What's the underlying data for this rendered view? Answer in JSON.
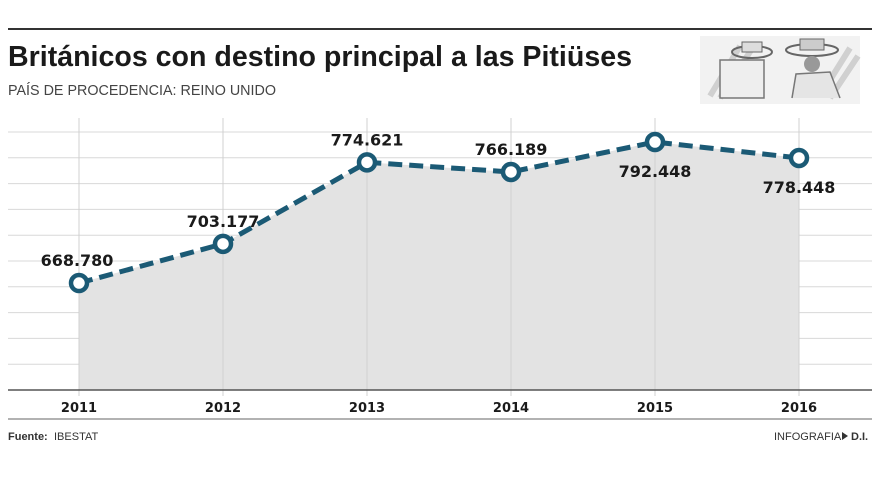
{
  "header": {
    "title": "Británicos con destino principal a las Pitiüses",
    "subtitle": "PAÍS DE PROCEDENCIA: REINO UNIDO"
  },
  "footer": {
    "source_label": "Fuente:",
    "source_value": "IBESTAT",
    "credit_label": "INFOGRAFIA",
    "credit_value": "D.I."
  },
  "colors": {
    "line": "#1b5a75",
    "area": "#e3e3e3",
    "grid": "#d8d8d8"
  },
  "chart_data": {
    "type": "line",
    "title": "Británicos con destino principal a las Pitiüses",
    "subtitle": "PAÍS DE PROCEDENCIA: REINO UNIDO",
    "categories": [
      "2011",
      "2012",
      "2013",
      "2014",
      "2015",
      "2016"
    ],
    "values": [
      668780,
      703177,
      774621,
      766189,
      792448,
      778448
    ],
    "labels": [
      "668.780",
      "703.177",
      "774.621",
      "766.189",
      "792.448",
      "778.448"
    ],
    "xlabel": "",
    "ylabel": "",
    "ylim": [
      575000,
      810000
    ],
    "grid": true,
    "style": "dashed line with circle markers, shaded area"
  }
}
